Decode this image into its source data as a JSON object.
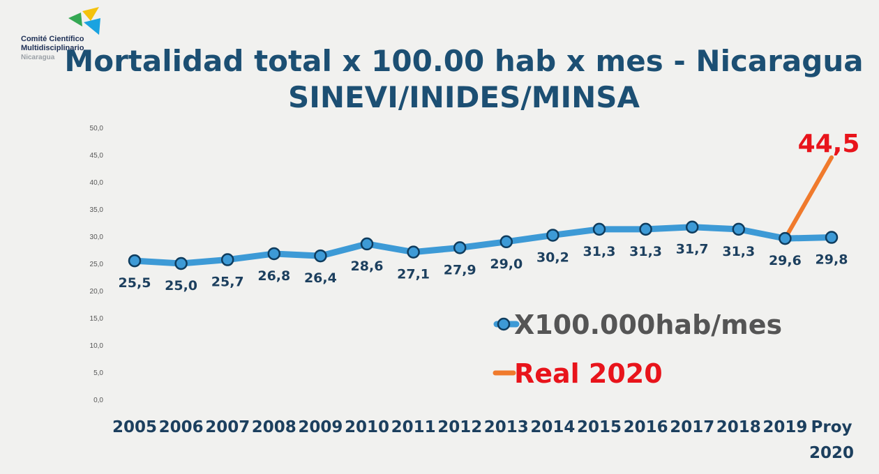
{
  "logo": {
    "line1": "Comité Científico",
    "line2": "Multidisciplinario",
    "line3": "Nicaragua",
    "colors": [
      "#f4c20d",
      "#34a853",
      "#1aa3e0",
      "#0d6fb8"
    ]
  },
  "title_line1": "Mortalidad total x 100.00 hab x mes - Nicaragua",
  "title_line2": "SINEVI/INIDES/MINSA",
  "chart_data": {
    "type": "line",
    "categories": [
      "2005",
      "2006",
      "2007",
      "2008",
      "2009",
      "2010",
      "2011",
      "2012",
      "2013",
      "2014",
      "2015",
      "2016",
      "2017",
      "2018",
      "2019",
      "Proy 2020"
    ],
    "ylim": [
      0,
      50
    ],
    "yticks": [
      "0,0",
      "5,0",
      "10,0",
      "15,0",
      "20,0",
      "25,0",
      "30,0",
      "35,0",
      "40,0",
      "45,0",
      "50,0"
    ],
    "grid": false,
    "series": [
      {
        "name": "X100.000hab/mes",
        "color": "#3d9ad6",
        "values": [
          25.5,
          25.0,
          25.7,
          26.8,
          26.4,
          28.6,
          27.1,
          27.9,
          29.0,
          30.2,
          31.3,
          31.3,
          31.7,
          31.3,
          29.6,
          29.8
        ],
        "labels": [
          "25,5",
          "25,0",
          "25,7",
          "26,8",
          "26,4",
          "28,6",
          "27,1",
          "27,9",
          "29,0",
          "30,2",
          "31,3",
          "31,3",
          "31,7",
          "31,3",
          "29,6",
          "29,8"
        ]
      },
      {
        "name": "Real 2020",
        "color": "#f07a2c",
        "x": [
          "2019",
          "Proy 2020"
        ],
        "values": [
          29.6,
          44.5
        ],
        "end_label": "44,5"
      }
    ],
    "legend_position": "lower-right",
    "legend_colors": {
      "label1": "#555555",
      "label2": "#e8141b"
    }
  }
}
